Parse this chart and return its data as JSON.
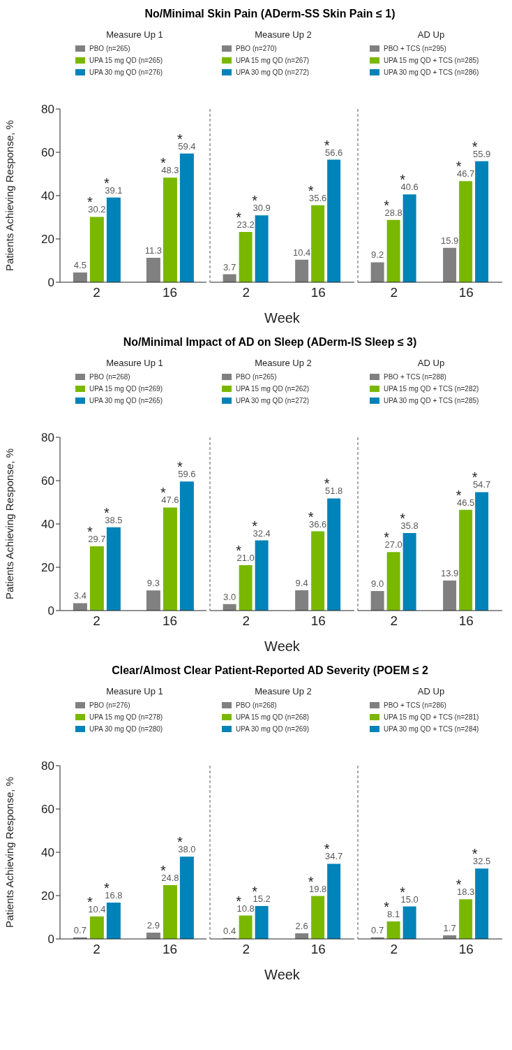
{
  "chart_data": [
    {
      "type": "bar",
      "title": "No/Minimal  Skin Pain (ADerm-SS Skin Pain ≤ 1)",
      "subtitle": "Measure Up 1",
      "ylabel": "Patients Achieving Response, %",
      "categories": [
        "2",
        "16"
      ],
      "series": [
        {
          "name": "PBO (n=265)",
          "color": "#808080",
          "values": [
            4.5,
            11.3
          ],
          "value_labels": [
            "4.5",
            "11.3"
          ]
        },
        {
          "name": "UPA 15 mg QD (n=265)",
          "color": "#7ab800",
          "values": [
            30.2,
            48.3
          ],
          "value_labels": [
            "30.2",
            "48.3"
          ]
        },
        {
          "name": "UPA 30 mg QD (n=276)",
          "color": "#0083b8",
          "values": [
            39.1,
            59.4
          ],
          "value_labels": [
            "39.1",
            "59.4"
          ]
        }
      ],
      "ylim": [
        0,
        80
      ],
      "yticks": [
        0,
        20,
        40,
        60,
        80
      ],
      "legend": "top left",
      "annotations": [
        "*",
        "*",
        "*",
        "*"
      ]
    },
    {
      "type": "bar",
      "subtitle": "Measure Up 2",
      "xlabel": "Week",
      "categories": [
        "2",
        "16"
      ],
      "series": [
        {
          "name": "PBO (n=270)",
          "color": "#808080",
          "values": [
            3.7,
            10.4
          ],
          "value_labels": [
            "3.7",
            "10.4"
          ]
        },
        {
          "name": "UPA 15 mg QD (n=267)",
          "color": "#7ab800",
          "values": [
            23.2,
            35.6
          ],
          "value_labels": [
            "23.2",
            "35.6"
          ]
        },
        {
          "name": "UPA 30 mg QD (n=272)",
          "color": "#0083b8",
          "values": [
            30.9,
            56.6
          ],
          "value_labels": [
            "30.9",
            "56.6"
          ]
        }
      ],
      "ylim": [
        0,
        80
      ],
      "yticks": [
        0,
        20,
        40,
        60,
        80
      ],
      "tick_labels": "x",
      "legend": "top left",
      "annotations": [
        "*",
        "*",
        "*",
        "*"
      ]
    },
    {
      "type": "bar",
      "subtitle": "AD Up",
      "categories": [
        "2",
        "16"
      ],
      "series": [
        {
          "name": "PBO + TCS (n=295)",
          "color": "#808080",
          "values": [
            9.2,
            15.9
          ],
          "value_labels": [
            "9.2",
            "15.9"
          ]
        },
        {
          "name": "UPA 15 mg QD + TCS (n=285)",
          "color": "#7ab800",
          "values": [
            28.8,
            46.7
          ],
          "value_labels": [
            "28.8",
            "46.7"
          ]
        },
        {
          "name": "UPA 30 mg QD + TCS (n=286)",
          "color": "#0083b8",
          "values": [
            40.6,
            55.9
          ],
          "value_labels": [
            "40.6",
            "55.9"
          ]
        }
      ],
      "ylim": [
        0,
        80
      ],
      "yticks": [
        0,
        20,
        40,
        60,
        80
      ],
      "tick_labels": "x",
      "legend": "top left",
      "annotations": [
        "*",
        "*",
        "*",
        "*"
      ]
    },
    {
      "type": "bar",
      "title": "No/Minimal Impact of AD on Sleep (ADerm-IS Sleep ≤ 3)",
      "subtitle": "Measure Up 1",
      "ylabel": "Patients Achieving Response, %",
      "categories": [
        "2",
        "16"
      ],
      "series": [
        {
          "name": "PBO (n=268)",
          "color": "#808080",
          "values": [
            3.4,
            9.3
          ],
          "value_labels": [
            "3.4",
            "9.3"
          ]
        },
        {
          "name": "UPA 15 mg QD (n=269)",
          "color": "#7ab800",
          "values": [
            29.7,
            47.6
          ],
          "value_labels": [
            "29.7",
            "47.6"
          ]
        },
        {
          "name": "UPA 30 mg QD (n=265)",
          "color": "#0083b8",
          "values": [
            38.5,
            59.6
          ],
          "value_labels": [
            "38.5",
            "59.6"
          ]
        }
      ],
      "ylim": [
        0,
        80
      ],
      "yticks": [
        0,
        20,
        40,
        60,
        80
      ],
      "legend": "top left",
      "annotations": [
        "*",
        "*",
        "*",
        "*"
      ]
    },
    {
      "type": "bar",
      "subtitle": "Measure Up 2",
      "xlabel": "Week",
      "categories": [
        "2",
        "16"
      ],
      "series": [
        {
          "name": "PBO (n=265)",
          "color": "#808080",
          "values": [
            3.0,
            9.4
          ],
          "value_labels": [
            "3.0",
            "9.4"
          ]
        },
        {
          "name": "UPA 15 mg QD (n=262)",
          "color": "#7ab800",
          "values": [
            21.0,
            36.6
          ],
          "value_labels": [
            "21.0",
            "36.6"
          ]
        },
        {
          "name": "UPA 30 mg QD (n=272)",
          "color": "#0083b8",
          "values": [
            32.4,
            51.8
          ],
          "value_labels": [
            "32.4",
            "51.8"
          ]
        }
      ],
      "ylim": [
        0,
        80
      ],
      "yticks": [
        0,
        20,
        40,
        60,
        80
      ],
      "tick_labels": "x",
      "legend": "top left",
      "annotations": [
        "*",
        "*",
        "*",
        "*"
      ]
    },
    {
      "type": "bar",
      "subtitle": "AD Up",
      "categories": [
        "2",
        "16"
      ],
      "series": [
        {
          "name": "PBO + TCS (n=288)",
          "color": "#808080",
          "values": [
            9.0,
            13.9
          ],
          "value_labels": [
            "9.0",
            "13.9"
          ]
        },
        {
          "name": "UPA 15 mg QD + TCS (n=282)",
          "color": "#7ab800",
          "values": [
            27.0,
            46.5
          ],
          "value_labels": [
            "27.0",
            "46.5"
          ]
        },
        {
          "name": "UPA 30 mg QD + TCS (n=285)",
          "color": "#0083b8",
          "values": [
            35.8,
            54.7
          ],
          "value_labels": [
            "35.8",
            "54.7"
          ]
        }
      ],
      "ylim": [
        0,
        80
      ],
      "yticks": [
        0,
        20,
        40,
        60,
        80
      ],
      "tick_labels": "x",
      "legend": "top left",
      "annotations": [
        "*",
        "*",
        "*",
        "*"
      ]
    },
    {
      "type": "bar",
      "title": "Clear/Almost Clear Patient-Reported AD Severity (POEM ≤ 2",
      "subtitle": "Measure Up 1",
      "ylabel": "Patients Achieving Response, %",
      "categories": [
        "2",
        "16"
      ],
      "series": [
        {
          "name": "PBO (n=276)",
          "color": "#808080",
          "values": [
            0.7,
            2.9
          ],
          "value_labels": [
            "0.7",
            "2.9"
          ]
        },
        {
          "name": "UPA 15 mg QD (n=278)",
          "color": "#7ab800",
          "values": [
            10.4,
            24.8
          ],
          "value_labels": [
            "10.4",
            "24.8"
          ]
        },
        {
          "name": "UPA 30 mg QD (n=280)",
          "color": "#0083b8",
          "values": [
            16.8,
            38.0
          ],
          "value_labels": [
            "16.8",
            "38.0"
          ]
        }
      ],
      "ylim": [
        0,
        80
      ],
      "yticks": [
        0,
        20,
        40,
        60,
        80
      ],
      "legend": "top left",
      "annotations": [
        "*",
        "*",
        "*",
        "*"
      ]
    },
    {
      "type": "bar",
      "subtitle": "Measure Up 2",
      "xlabel": "Week",
      "categories": [
        "2",
        "16"
      ],
      "series": [
        {
          "name": "PBO (n=268)",
          "color": "#808080",
          "values": [
            0.4,
            2.6
          ],
          "value_labels": [
            "0.4",
            "2.6"
          ]
        },
        {
          "name": "UPA 15 mg QD (n=268)",
          "color": "#7ab800",
          "values": [
            10.8,
            19.8
          ],
          "value_labels": [
            "10.8",
            "19.8"
          ]
        },
        {
          "name": "UPA 30 mg QD (n=269)",
          "color": "#0083b8",
          "values": [
            15.2,
            34.7
          ],
          "value_labels": [
            "15.2",
            "34.7"
          ]
        }
      ],
      "ylim": [
        0,
        80
      ],
      "yticks": [
        0,
        20,
        40,
        60,
        80
      ],
      "tick_labels": "x",
      "legend": "top left",
      "annotations": [
        "*",
        "*",
        "*",
        "*"
      ]
    },
    {
      "type": "bar",
      "subtitle": "AD Up",
      "categories": [
        "2",
        "16"
      ],
      "series": [
        {
          "name": "PBO + TCS (n=286)",
          "color": "#808080",
          "values": [
            0.7,
            1.7
          ],
          "value_labels": [
            "0.7",
            "1.7"
          ]
        },
        {
          "name": "UPA 15 mg QD + TCS (n=281)",
          "color": "#7ab800",
          "values": [
            8.1,
            18.3
          ],
          "value_labels": [
            "8.1",
            "18.3"
          ]
        },
        {
          "name": "UPA 30 mg QD + TCS (n=284)",
          "color": "#0083b8",
          "values": [
            15.0,
            32.5
          ],
          "value_labels": [
            "15.0",
            "32.5"
          ]
        }
      ],
      "ylim": [
        0,
        80
      ],
      "yticks": [
        0,
        20,
        40,
        60,
        80
      ],
      "tick_labels": "x",
      "legend": "top left",
      "annotations": [
        "*",
        "*",
        "*",
        "*"
      ]
    }
  ]
}
